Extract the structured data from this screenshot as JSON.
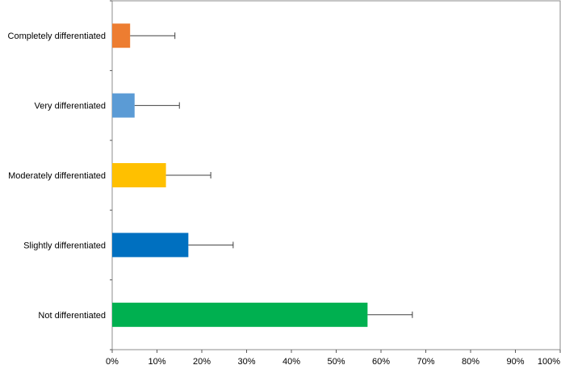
{
  "chart_data": {
    "type": "bar",
    "orientation": "horizontal",
    "categories": [
      "Completely differentiated",
      "Very differentiated",
      "Moderately differentiated",
      "Slightly differentiated",
      "Not differentiated"
    ],
    "values": [
      4,
      5,
      12,
      17,
      57
    ],
    "error_plus": [
      10,
      10,
      10,
      10,
      10
    ],
    "colors": [
      "#ED7D31",
      "#5B9BD5",
      "#FFC000",
      "#0070C0",
      "#00B050"
    ],
    "xlim": [
      0,
      100
    ],
    "xticks": [
      "0%",
      "10%",
      "20%",
      "30%",
      "40%",
      "50%",
      "60%",
      "70%",
      "80%",
      "90%",
      "100%"
    ],
    "title": "",
    "xlabel": "",
    "ylabel": "",
    "grid": false,
    "legend": "none"
  }
}
